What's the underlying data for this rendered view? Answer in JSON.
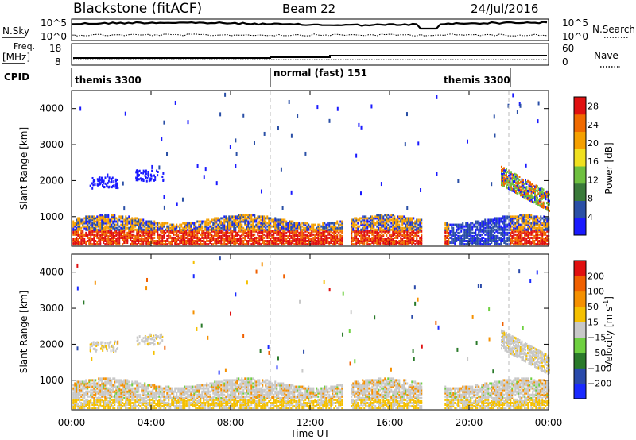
{
  "header": {
    "station": "Blackstone (fitACF)",
    "beam": "Beam 22",
    "date": "24/Jul/2016"
  },
  "sky_panel": {
    "left_label": "N.Sky",
    "right_label": "N.Search",
    "left_ticks": [
      "10^5",
      "10^0"
    ],
    "right_ticks": [
      "10^5",
      "10^0"
    ]
  },
  "freq_panel": {
    "left_label_1": "Freq.",
    "left_label_2": "[MHz]",
    "right_label": "Nave",
    "left_ticks": [
      "18",
      "8"
    ],
    "right_ticks": [
      "60",
      "0"
    ]
  },
  "cpid_panel": {
    "label": "CPID",
    "segments": [
      "themis 3300",
      "normal (fast) 151",
      "themis 3300"
    ],
    "segment_times_h": [
      0,
      10,
      22,
      24
    ]
  },
  "chart_data": [
    {
      "type": "heatmap",
      "title": "",
      "ylabel": "Slant Range [km]",
      "xlabel": "Time UT",
      "x_ticks": [
        "00:00",
        "04:00",
        "08:00",
        "12:00",
        "16:00",
        "20:00",
        "00:00"
      ],
      "x_range_h": [
        0,
        24
      ],
      "y_ticks": [
        1000,
        2000,
        3000,
        4000
      ],
      "y_range_km": [
        180,
        4500
      ],
      "colorbar_label": "Power [dB]",
      "colorbar_ticks": [
        4,
        8,
        12,
        16,
        20,
        24,
        28
      ],
      "colorbar_range": [
        0,
        30
      ],
      "colors": [
        "#1a1aff",
        "#2a4fa6",
        "#3a7a3a",
        "#6fc040",
        "#f0e020",
        "#f5a000",
        "#f06a00",
        "#e01010"
      ]
    },
    {
      "type": "heatmap",
      "title": "",
      "ylabel": "Slant Range [km]",
      "xlabel": "Time UT",
      "x_ticks": [
        "00:00",
        "04:00",
        "08:00",
        "12:00",
        "16:00",
        "20:00",
        "00:00"
      ],
      "x_range_h": [
        0,
        24
      ],
      "y_ticks": [
        1000,
        2000,
        3000,
        4000
      ],
      "y_range_km": [
        180,
        4500
      ],
      "colorbar_label": "Velocity [m s^-1]",
      "colorbar_ticks": [
        200,
        100,
        50,
        15,
        -15,
        -50,
        -100,
        -200
      ],
      "colors": [
        "#1a2aff",
        "#2a4aaa",
        "#2a7a2a",
        "#6ed040",
        "#c8c8c8",
        "#f5c000",
        "#f59000",
        "#f06000",
        "#e01010"
      ]
    }
  ],
  "vertical_markers_h": [
    10,
    22
  ],
  "x_axis_title": "Time UT"
}
